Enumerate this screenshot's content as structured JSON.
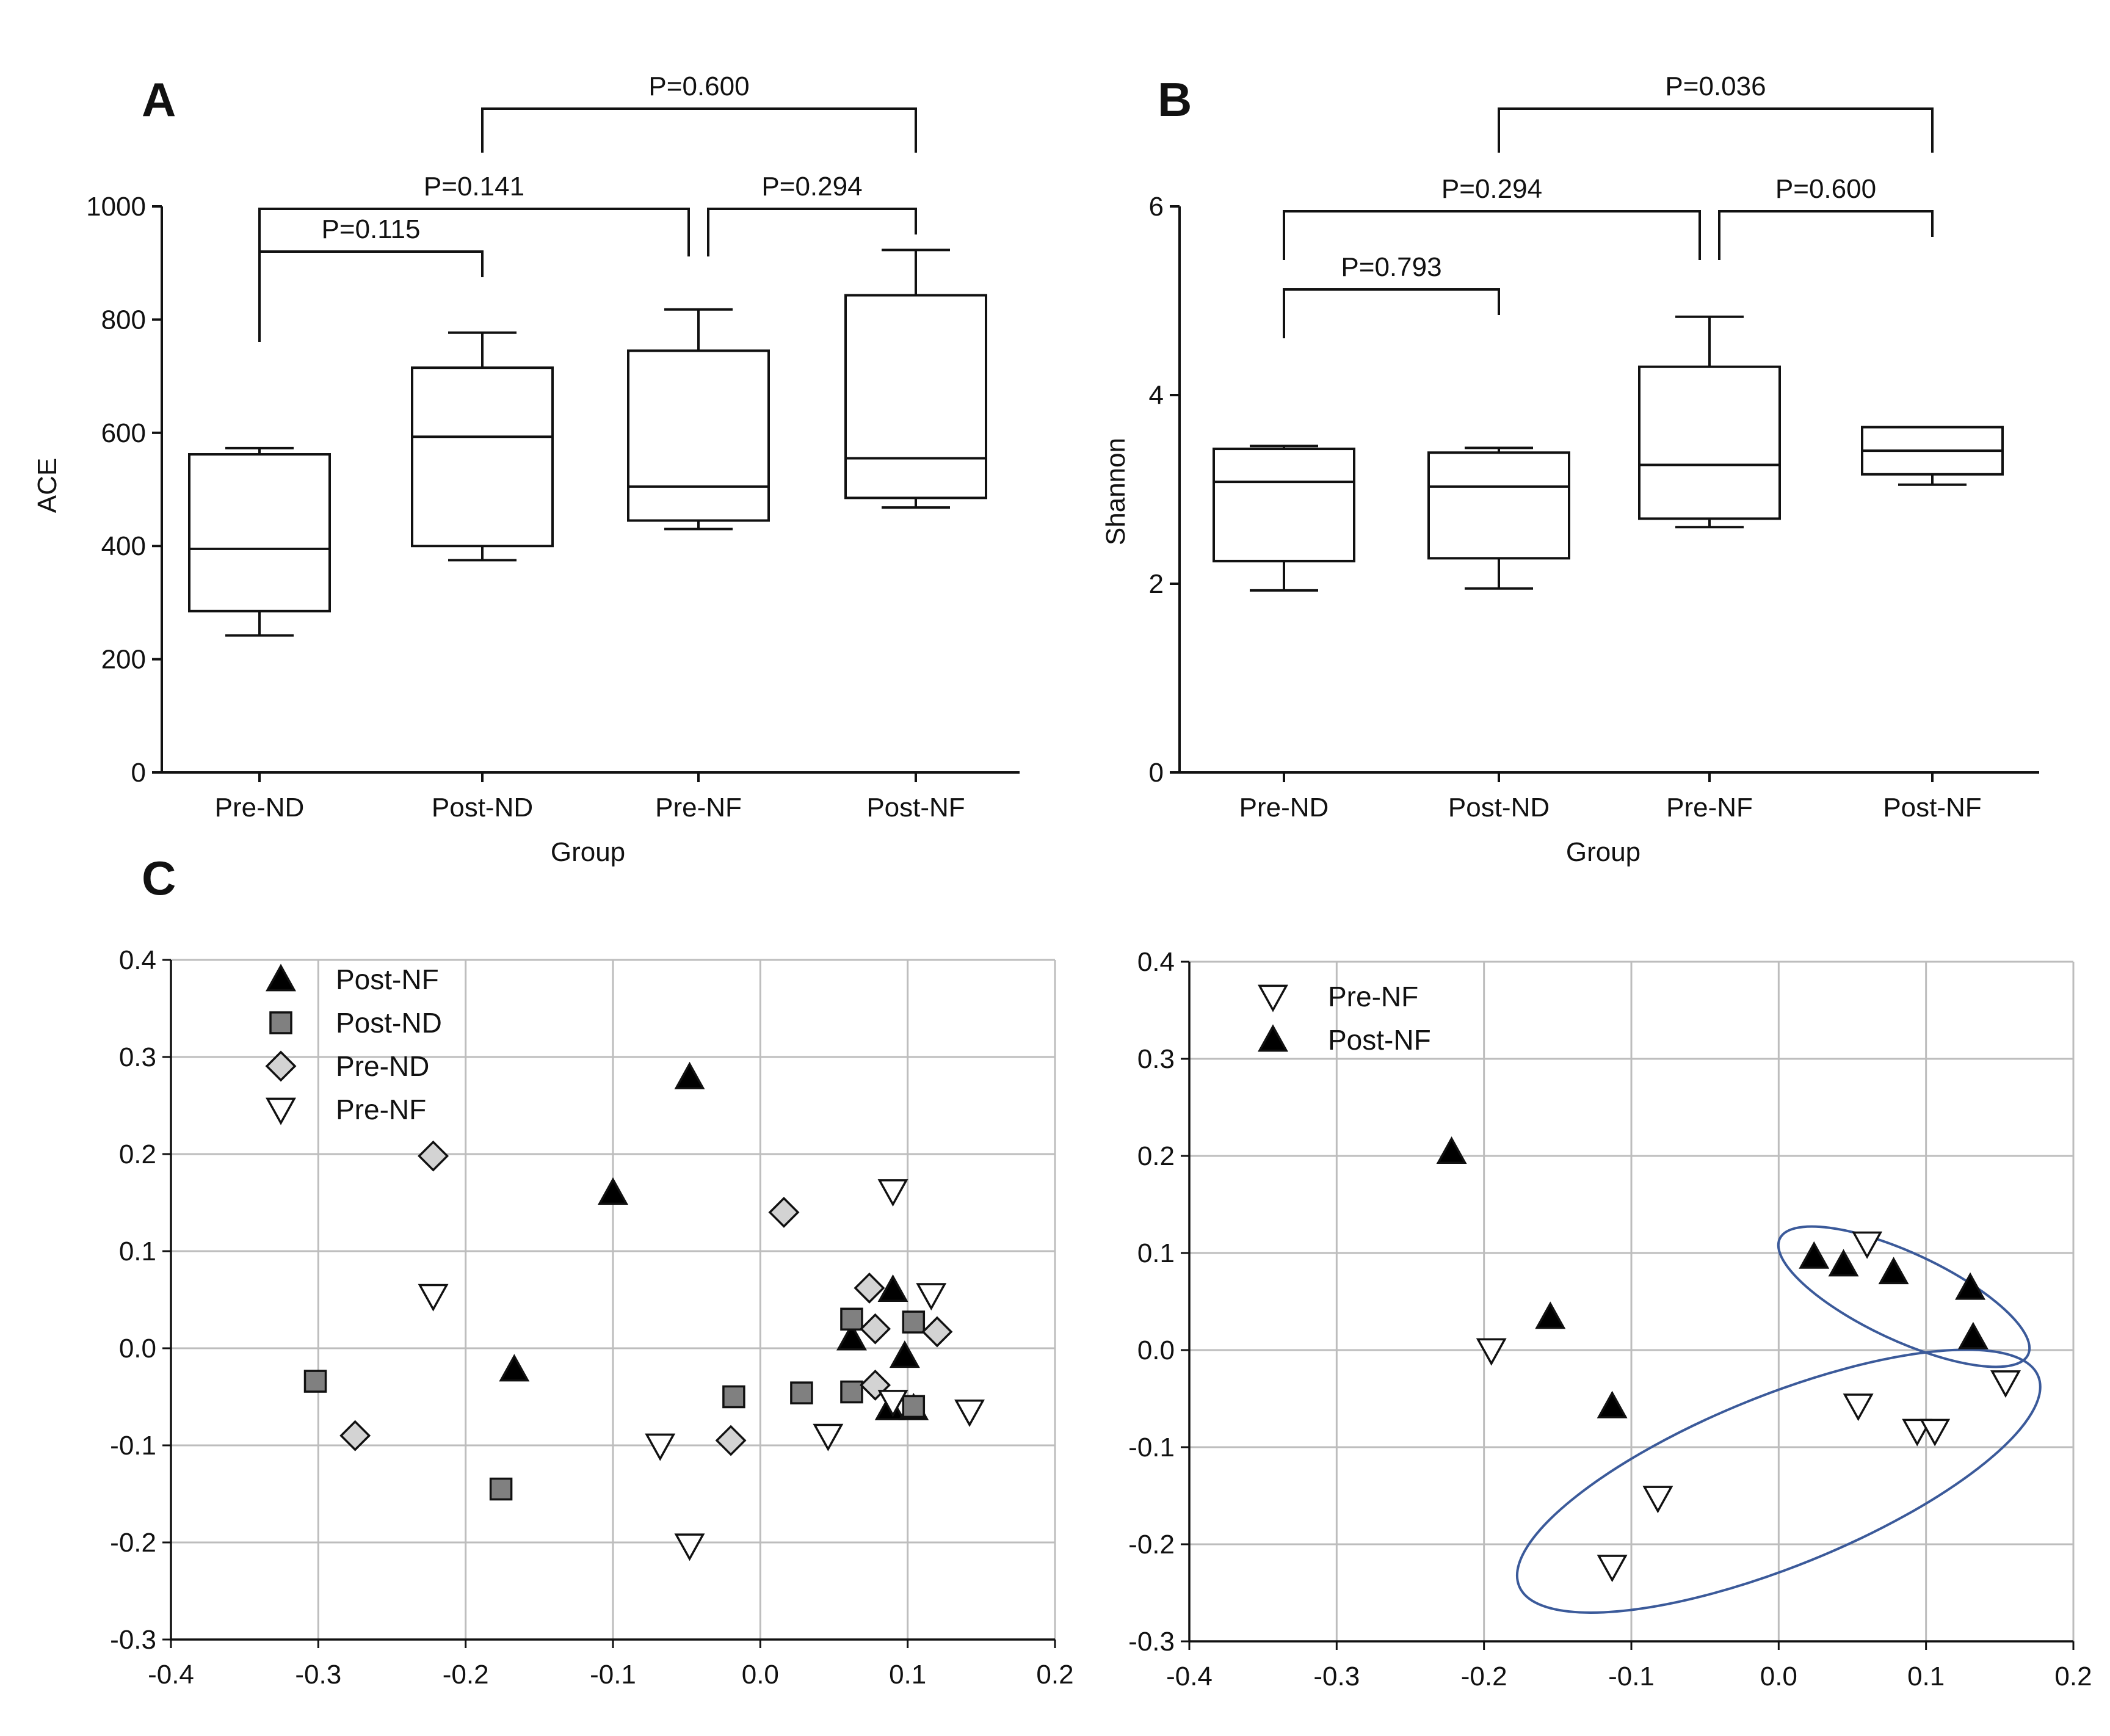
{
  "chart_data": [
    {
      "panel": "A",
      "type": "box",
      "xlabel": "Group",
      "ylabel": "ACE",
      "ylim": [
        0,
        1000
      ],
      "yticks": [
        "0",
        "200",
        "400",
        "600",
        "800",
        "1000"
      ],
      "categories": [
        "Pre-ND",
        "Post-ND",
        "Pre-NF",
        "Post-NF"
      ],
      "boxes": [
        {
          "min": 242,
          "q1": 285,
          "median": 395,
          "q3": 562,
          "max": 573
        },
        {
          "min": 375,
          "q1": 400,
          "median": 593,
          "q3": 715,
          "max": 777
        },
        {
          "min": 430,
          "q1": 445,
          "median": 505,
          "q3": 745,
          "max": 818
        },
        {
          "min": 468,
          "q1": 485,
          "median": 555,
          "q3": 843,
          "max": 923
        }
      ],
      "comparisons": [
        {
          "from": 0,
          "to": 1,
          "label": "P=0.115",
          "level": 0
        },
        {
          "from": 0,
          "to": 2,
          "label": "P=0.141",
          "level": 1
        },
        {
          "from": 2,
          "to": 3,
          "label": "P=0.294",
          "level": 1
        },
        {
          "from": 1,
          "to": 3,
          "label": "P=0.600",
          "level": 2
        }
      ]
    },
    {
      "panel": "B",
      "type": "box",
      "xlabel": "Group",
      "ylabel": "Shannon",
      "ylim": [
        0,
        6
      ],
      "yticks": [
        "0",
        "2",
        "4",
        "6"
      ],
      "categories": [
        "Pre-ND",
        "Post-ND",
        "Pre-NF",
        "Post-NF"
      ],
      "boxes": [
        {
          "min": 1.93,
          "q1": 2.24,
          "median": 3.08,
          "q3": 3.43,
          "max": 3.46
        },
        {
          "min": 1.95,
          "q1": 2.27,
          "median": 3.03,
          "q3": 3.39,
          "max": 3.44
        },
        {
          "min": 2.6,
          "q1": 2.69,
          "median": 3.26,
          "q3": 4.3,
          "max": 4.83
        },
        {
          "min": 3.05,
          "q1": 3.16,
          "median": 3.41,
          "q3": 3.66,
          "max": 3.66
        }
      ],
      "comparisons": [
        {
          "from": 0,
          "to": 1,
          "label": "P=0.793",
          "level": 0
        },
        {
          "from": 0,
          "to": 2,
          "label": "P=0.294",
          "level": 1
        },
        {
          "from": 2,
          "to": 3,
          "label": "P=0.600",
          "level": 1
        },
        {
          "from": 1,
          "to": 3,
          "label": "P=0.036",
          "level": 2
        }
      ]
    },
    {
      "panel": "C",
      "type": "scatter",
      "xlim": [
        -0.4,
        0.2
      ],
      "ylim": [
        -0.3,
        0.4
      ],
      "xticks": [
        "-0.4",
        "-0.3",
        "-0.2",
        "-0.1",
        "0.0",
        "0.1",
        "0.2"
      ],
      "yticks": [
        "-0.3",
        "-0.2",
        "-0.1",
        "0.0",
        "0.1",
        "0.2",
        "0.3",
        "0.4"
      ],
      "series": [
        {
          "name": "Post-NF",
          "marker": "triangle-up",
          "fill": "#000000",
          "points": [
            [
              -0.048,
              0.279
            ],
            [
              -0.1,
              0.16
            ],
            [
              -0.167,
              -0.022
            ],
            [
              0.062,
              0.01
            ],
            [
              0.09,
              0.06
            ],
            [
              0.098,
              -0.008
            ],
            [
              0.088,
              -0.062
            ],
            [
              0.104,
              -0.062
            ]
          ]
        },
        {
          "name": "Post-ND",
          "marker": "square",
          "fill": "#808080",
          "points": [
            [
              -0.302,
              -0.034
            ],
            [
              -0.176,
              -0.145
            ],
            [
              -0.018,
              -0.05
            ],
            [
              0.028,
              -0.046
            ],
            [
              0.062,
              0.03
            ],
            [
              0.062,
              -0.045
            ],
            [
              0.104,
              0.027
            ],
            [
              0.104,
              -0.06
            ]
          ]
        },
        {
          "name": "Pre-ND",
          "marker": "diamond",
          "fill": "#d3d3d3",
          "points": [
            [
              -0.222,
              0.198
            ],
            [
              -0.275,
              -0.09
            ],
            [
              0.016,
              0.14
            ],
            [
              0.074,
              0.062
            ],
            [
              0.078,
              0.02
            ],
            [
              0.12,
              0.017
            ],
            [
              0.078,
              -0.038
            ],
            [
              -0.02,
              -0.095
            ]
          ]
        },
        {
          "name": "Pre-NF",
          "marker": "triangle-down",
          "fill": "#ffffff",
          "points": [
            [
              -0.222,
              0.054
            ],
            [
              0.09,
              0.162
            ],
            [
              0.116,
              0.055
            ],
            [
              0.142,
              -0.065
            ],
            [
              0.046,
              -0.09
            ],
            [
              -0.068,
              -0.1
            ],
            [
              -0.048,
              -0.203
            ],
            [
              0.09,
              -0.055
            ]
          ]
        }
      ]
    },
    {
      "panel": "C-right",
      "type": "scatter",
      "xlim": [
        -0.4,
        0.2
      ],
      "ylim": [
        -0.3,
        0.4
      ],
      "xticks": [
        "-0.4",
        "-0.3",
        "-0.2",
        "-0.1",
        "0.0",
        "0.1",
        "0.2"
      ],
      "yticks": [
        "-0.3",
        "-0.2",
        "-0.1",
        "0.0",
        "0.1",
        "0.2",
        "0.3",
        "0.4"
      ],
      "series": [
        {
          "name": "Pre-NF",
          "marker": "triangle-down",
          "fill": "#ffffff",
          "points": [
            [
              -0.195,
              0.0
            ],
            [
              -0.082,
              -0.152
            ],
            [
              -0.113,
              -0.223
            ],
            [
              0.06,
              0.11
            ],
            [
              0.054,
              -0.057
            ],
            [
              0.094,
              -0.083
            ],
            [
              0.106,
              -0.083
            ],
            [
              0.154,
              -0.033
            ]
          ]
        },
        {
          "name": "Post-NF",
          "marker": "triangle-up",
          "fill": "#000000",
          "points": [
            [
              -0.222,
              0.204
            ],
            [
              -0.155,
              0.034
            ],
            [
              -0.113,
              -0.058
            ],
            [
              0.024,
              0.096
            ],
            [
              0.044,
              0.088
            ],
            [
              0.078,
              0.08
            ],
            [
              0.13,
              0.064
            ],
            [
              0.132,
              0.013
            ]
          ]
        }
      ],
      "ellipses": [
        {
          "cx": 0.085,
          "cy": 0.055,
          "rx": 0.093,
          "ry": 0.045,
          "rotate": 25,
          "color": "#3b5a9a"
        },
        {
          "cx": 0.0,
          "cy": -0.135,
          "rx": 0.19,
          "ry": 0.088,
          "rotate": -22,
          "color": "#3b5a9a"
        }
      ]
    }
  ]
}
